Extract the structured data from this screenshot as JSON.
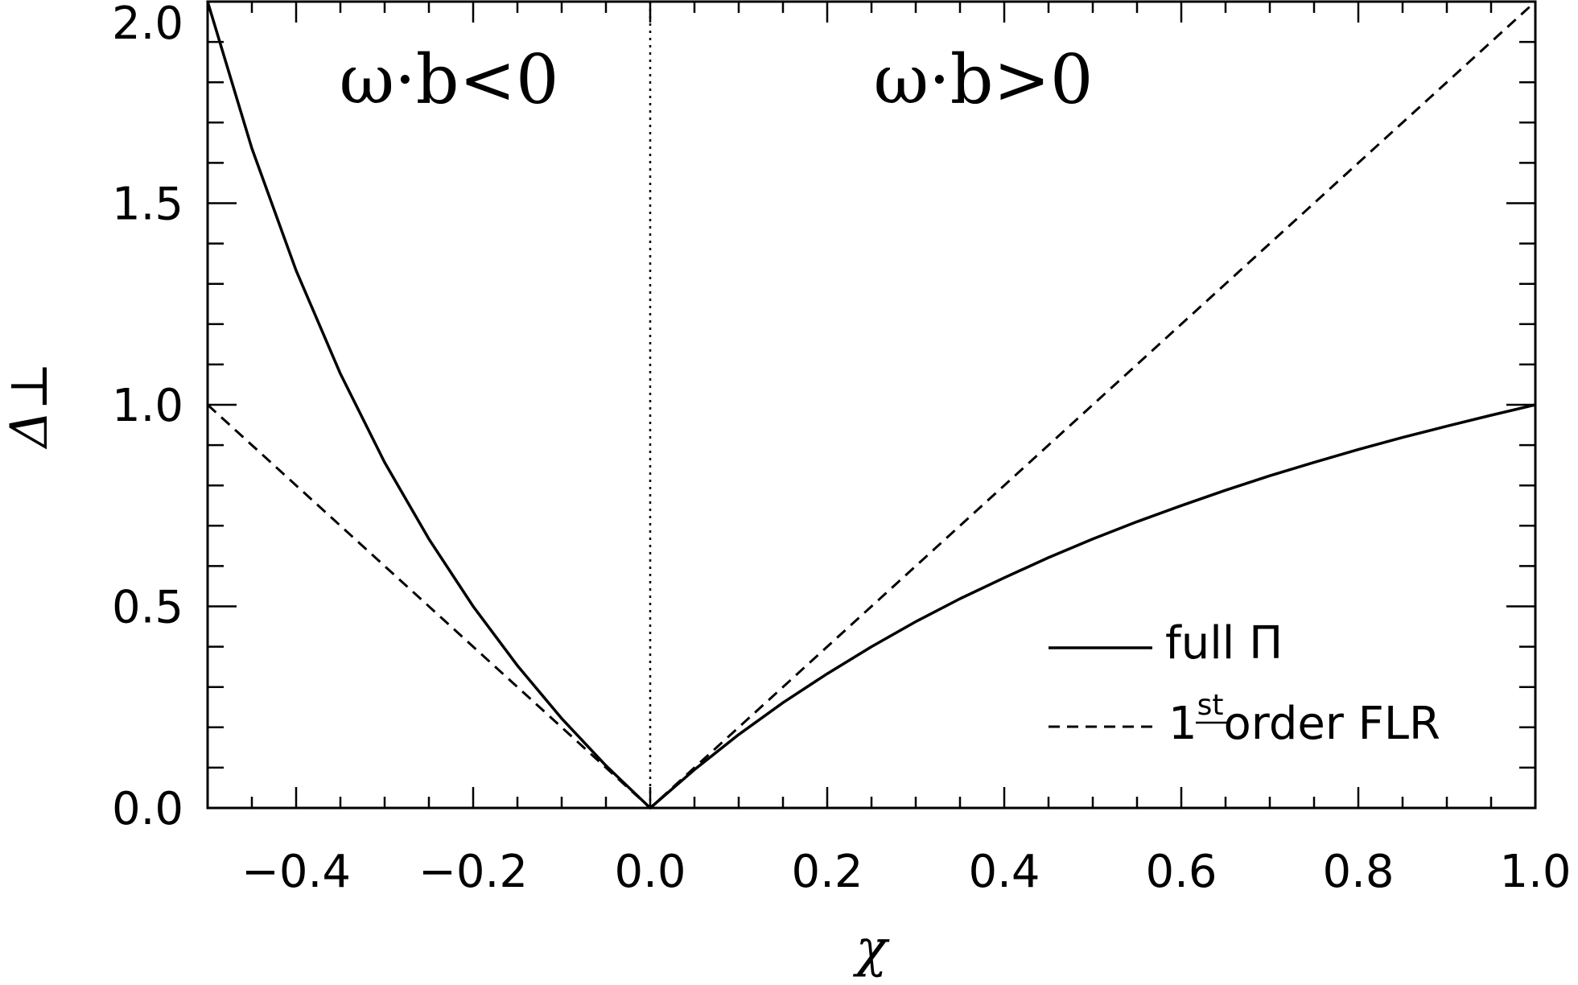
{
  "chart_data": {
    "type": "line",
    "xlabel": "χ",
    "ylabel": "Δ⊥",
    "xlim": [
      -0.5,
      1.0
    ],
    "ylim": [
      0.0,
      2.0
    ],
    "x_ticks": [
      -0.4,
      -0.2,
      0.0,
      0.2,
      0.4,
      0.6,
      0.8,
      1.0
    ],
    "x_tick_labels": [
      "−0.4",
      "−0.2",
      "0.0",
      "0.2",
      "0.4",
      "0.6",
      "0.8",
      "1.0"
    ],
    "y_ticks": [
      0.0,
      0.5,
      1.0,
      1.5,
      2.0
    ],
    "y_tick_labels": [
      "0.0",
      "0.5",
      "1.0",
      "1.5",
      "2.0"
    ],
    "grid": false,
    "legend_position": "bottom-right",
    "annotations": {
      "left_region": "ω·b<0",
      "right_region": "ω·b>0"
    },
    "vertical_line_x": 0.0,
    "series": [
      {
        "name": "full Π",
        "style": "solid",
        "x": [
          -0.5,
          -0.45,
          -0.4,
          -0.35,
          -0.3,
          -0.25,
          -0.2,
          -0.15,
          -0.1,
          -0.05,
          0.0,
          0.05,
          0.1,
          0.15,
          0.2,
          0.25,
          0.3,
          0.35,
          0.4,
          0.45,
          0.5,
          0.55,
          0.6,
          0.65,
          0.7,
          0.75,
          0.8,
          0.85,
          0.9,
          0.95,
          1.0
        ],
        "y": [
          2.0,
          1.636,
          1.333,
          1.077,
          0.857,
          0.667,
          0.5,
          0.353,
          0.222,
          0.105,
          0.0,
          0.095,
          0.182,
          0.261,
          0.333,
          0.4,
          0.462,
          0.519,
          0.571,
          0.621,
          0.667,
          0.71,
          0.75,
          0.788,
          0.824,
          0.857,
          0.889,
          0.919,
          0.947,
          0.974,
          1.0
        ]
      },
      {
        "name": "1st order FLR",
        "style": "dashed",
        "x": [
          -0.5,
          0.0,
          1.0
        ],
        "y": [
          1.0,
          0.0,
          2.0
        ]
      }
    ]
  },
  "legend": {
    "full_label": "full Π",
    "flr_number": "1",
    "flr_sup": "st",
    "flr_rest": "order FLR"
  }
}
